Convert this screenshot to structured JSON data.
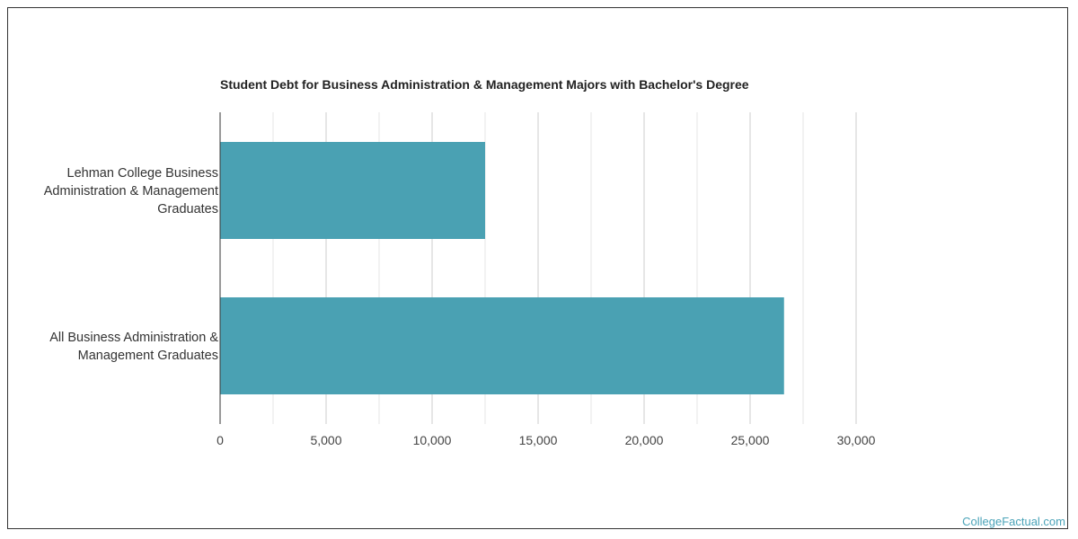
{
  "chart_data": {
    "type": "bar",
    "orientation": "horizontal",
    "title": "Student Debt for Business Administration & Management Majors with Bachelor's Degree",
    "categories": [
      [
        "Lehman College Business",
        "Administration & Management",
        "Graduates"
      ],
      [
        "All Business Administration &",
        "Management Graduates"
      ]
    ],
    "values": [
      12500,
      26600
    ],
    "xlim": [
      0,
      30000
    ],
    "xticks": [
      0,
      5000,
      10000,
      15000,
      20000,
      25000,
      30000
    ],
    "xtick_labels": [
      "0",
      "5,000",
      "10,000",
      "15,000",
      "20,000",
      "25,000",
      "30,000"
    ],
    "grid": true,
    "bar_color": "#4aa1b3"
  },
  "footer": {
    "watermark": "CollegeFactual.com"
  }
}
